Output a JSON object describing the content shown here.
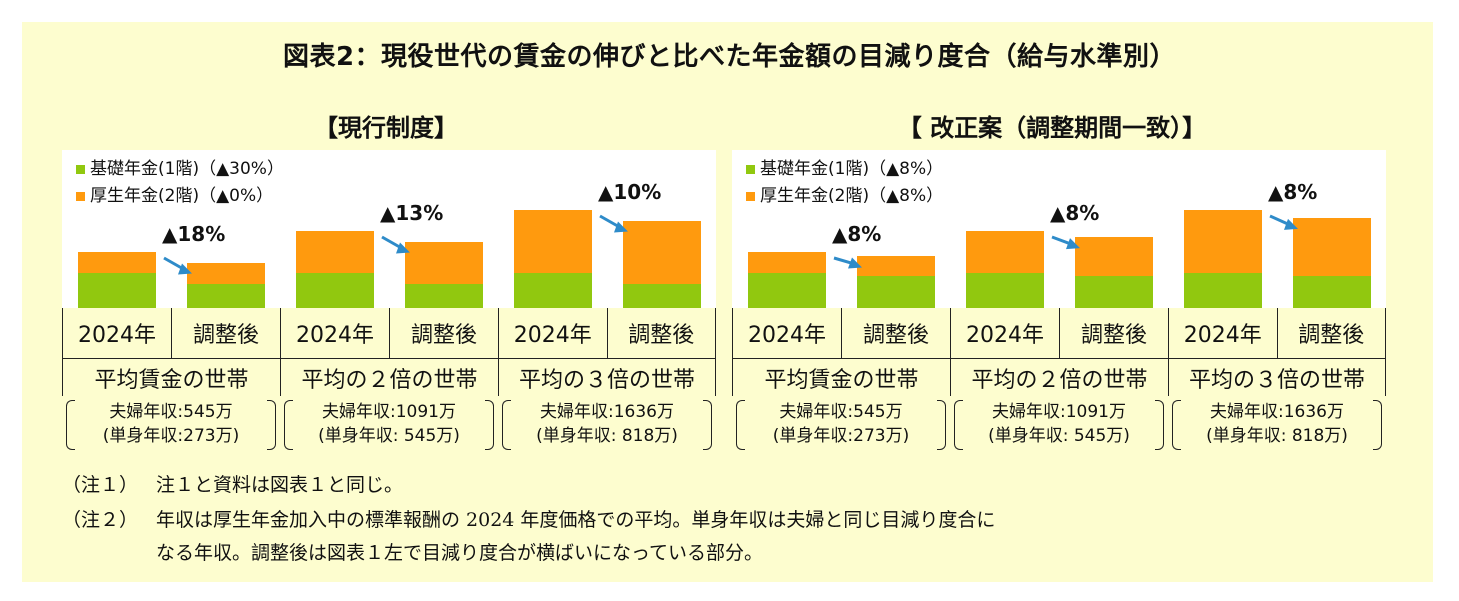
{
  "title": "図表2：現役世代の賃金の伸びと比べた年金額の目減り度合（給与水準別）",
  "colors": {
    "kiso": "#91c80f",
    "kousei": "#ff9a0e",
    "background": "#fdfdcf",
    "arrow": "#2e8bc9"
  },
  "chart_data": [
    {
      "type": "bar",
      "stacked": true,
      "title": "【現行制度】",
      "legend": [
        "基礎年金(1階)（▲30%）",
        "厚生年金(2階)（▲0%）"
      ],
      "legend_placement": "top-left",
      "categories": [
        "2024年",
        "調整後",
        "2024年",
        "調整後",
        "2024年",
        "調整後"
      ],
      "groups": [
        {
          "label": "平均賃金の世帯",
          "income_line1": "夫婦年収:545万",
          "income_line2": "(単身年収:273万)",
          "reduction": "▲18%"
        },
        {
          "label": "平均の２倍の世帯",
          "income_line1": "夫婦年収:1091万",
          "income_line2": "(単身年収:  545万)",
          "reduction": "▲13%"
        },
        {
          "label": "平均の３倍の世帯",
          "income_line1": "夫婦年収:1636万",
          "income_line2": "(単身年収:  818万)",
          "reduction": "▲10%"
        }
      ],
      "series": [
        {
          "name": "基礎年金(1階)",
          "values": [
            1.0,
            0.7,
            1.0,
            0.7,
            1.0,
            0.7
          ]
        },
        {
          "name": "厚生年金(2階)",
          "values": [
            0.6,
            0.6,
            1.2,
            1.2,
            1.8,
            1.8
          ]
        }
      ]
    },
    {
      "type": "bar",
      "stacked": true,
      "title": "【 改正案（調整期間一致）】",
      "legend": [
        "基礎年金(1階)（▲8%）",
        "厚生年金(2階)（▲8%）"
      ],
      "legend_placement": "top-left",
      "categories": [
        "2024年",
        "調整後",
        "2024年",
        "調整後",
        "2024年",
        "調整後"
      ],
      "groups": [
        {
          "label": "平均賃金の世帯",
          "income_line1": "夫婦年収:545万",
          "income_line2": "(単身年収:273万)",
          "reduction": "▲8%"
        },
        {
          "label": "平均の２倍の世帯",
          "income_line1": "夫婦年収:1091万",
          "income_line2": "(単身年収:  545万)",
          "reduction": "▲8%"
        },
        {
          "label": "平均の３倍の世帯",
          "income_line1": "夫婦年収:1636万",
          "income_line2": "(単身年収:  818万)",
          "reduction": "▲8%"
        }
      ],
      "series": [
        {
          "name": "基礎年金(1階)",
          "values": [
            1.0,
            0.92,
            1.0,
            0.92,
            1.0,
            0.92
          ]
        },
        {
          "name": "厚生年金(2階)",
          "values": [
            0.6,
            0.552,
            1.2,
            1.104,
            1.8,
            1.656
          ]
        }
      ]
    }
  ],
  "notes": [
    {
      "label": "（注１）",
      "lines": [
        "注１と資料は図表１と同じ。"
      ]
    },
    {
      "label": "（注２）",
      "lines": [
        "年収は厚生年金加入中の標準報酬の 2024 年度価格での平均。単身年収は夫婦と同じ目減り度合に",
        "なる年収。調整後は図表１左で目減り度合が横ばいになっている部分。"
      ]
    }
  ]
}
